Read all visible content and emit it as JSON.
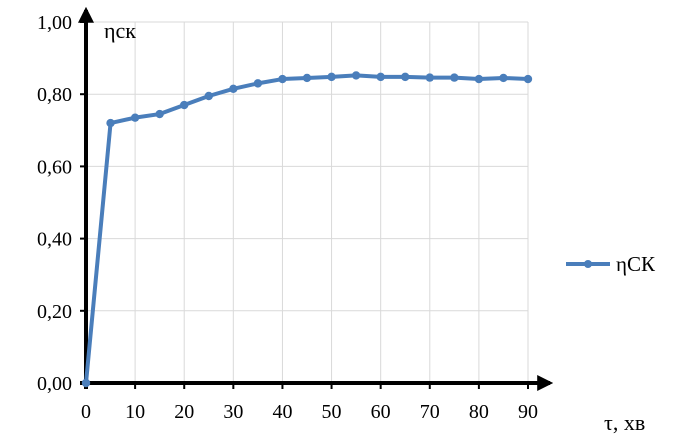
{
  "chart_data": {
    "type": "line",
    "xlabel": "τ, хв",
    "ylabel": "ηск",
    "xlim": [
      0,
      90
    ],
    "ylim": [
      0,
      1
    ],
    "x_ticks": [
      "0",
      "10",
      "20",
      "30",
      "40",
      "50",
      "60",
      "70",
      "80",
      "90"
    ],
    "y_ticks": [
      "0,00",
      "0,20",
      "0,40",
      "0,60",
      "0,80",
      "1,00"
    ],
    "grid": true,
    "legend_position": "right",
    "series": [
      {
        "name": "ηСК",
        "color": "#4a7ebb",
        "x": [
          0,
          5,
          10,
          15,
          20,
          25,
          30,
          35,
          40,
          45,
          50,
          55,
          60,
          65,
          70,
          75,
          80,
          85,
          90
        ],
        "y": [
          0.0,
          0.72,
          0.735,
          0.745,
          0.77,
          0.795,
          0.815,
          0.83,
          0.842,
          0.845,
          0.848,
          0.852,
          0.848,
          0.848,
          0.846,
          0.846,
          0.842,
          0.845,
          0.842
        ]
      }
    ]
  }
}
